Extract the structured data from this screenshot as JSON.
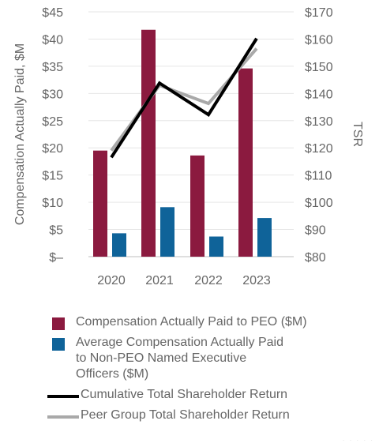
{
  "chart_data": {
    "type": "bar",
    "categories": [
      "2020",
      "2021",
      "2022",
      "2023"
    ],
    "series": [
      {
        "name": "Compensation Actually Paid to PEO ($M)",
        "kind": "bar",
        "axis": "left",
        "color": "#8b1a3f",
        "values": [
          19.5,
          41.7,
          18.6,
          34.6
        ]
      },
      {
        "name": "Average Compensation Actually Paid to Non-PEO Named Executive Officers ($M)",
        "kind": "bar",
        "axis": "left",
        "color": "#0f6399",
        "values": [
          4.3,
          9.1,
          3.7,
          7.1
        ]
      },
      {
        "name": "Cumulative Total Shareholder Return",
        "kind": "line",
        "axis": "right",
        "color": "#000000",
        "values": [
          116.5,
          143.8,
          132.2,
          160.2
        ]
      },
      {
        "name": "Peer Group Total Shareholder Return",
        "kind": "line",
        "axis": "right",
        "color": "#a9a9a9",
        "values": [
          119.0,
          143.0,
          136.3,
          156.5
        ]
      }
    ],
    "ylabel": "Compensation Actually Paid, $M",
    "y2label": "TSR",
    "ylim": [
      0,
      45
    ],
    "y2lim": [
      80,
      170
    ],
    "yticks": [
      "$–",
      "$5",
      "$10",
      "$15",
      "$20",
      "$25",
      "$30",
      "$35",
      "$40",
      "$45"
    ],
    "y2ticks": [
      "$80",
      "$90",
      "$100",
      "$110",
      "$120",
      "$130",
      "$140",
      "$150",
      "$160",
      "$170"
    ],
    "grid": true,
    "legend_position": "bottom"
  },
  "legend": [
    {
      "label": "Compensation Actually Paid to PEO ($M)",
      "swatch": "box",
      "color": "#8b1a3f"
    },
    {
      "label": "Average Compensation Actually Paid to Non-PEO Named Executive Officers ($M)",
      "swatch": "box",
      "color": "#0f6399",
      "wrap": true
    },
    {
      "label": "Cumulative Total Shareholder Return",
      "swatch": "line",
      "color": "#000000"
    },
    {
      "label": "Peer Group Total Shareholder Return",
      "swatch": "line",
      "color": "#a9a9a9"
    }
  ]
}
